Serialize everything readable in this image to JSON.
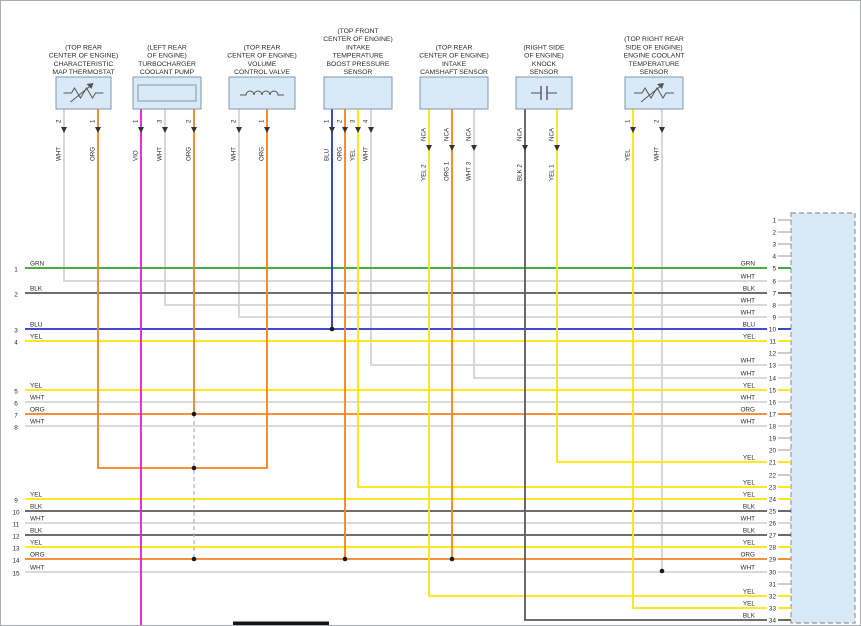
{
  "colors": {
    "GRN": "#2ea12e",
    "BLK": "#5a5a5a",
    "BLU": "#2233cc",
    "YEL": "#ffe600",
    "WHT": "#d4d4d4",
    "ORG": "#f5821f",
    "VIO": "#f013dc",
    "junction": "#1a1a1a",
    "dashed_link": "#b0b0b0",
    "component_fill": "#d9e9f7",
    "component_stroke": "#7f98ad",
    "connector_fill": "#d9e9f7",
    "connector_stroke": "#999999",
    "text": "#2b2b2b"
  },
  "nca_label": "NCA",
  "components": [
    {
      "id": "map-thermostat",
      "location_label": [
        "(TOP REAR",
        "CENTER OF ENGINE)",
        "CHARACTERISTIC",
        "MAP THERMOSTAT"
      ],
      "symbol": "thermistor",
      "pins": [
        {
          "num": "2",
          "color": "WHT"
        },
        {
          "num": "1",
          "color": "ORG"
        }
      ]
    },
    {
      "id": "turbo-coolant-pump",
      "location_label": [
        "(LEFT REAR",
        "OF ENGINE)",
        "TURBOCHARGER",
        "COOLANT PUMP"
      ],
      "symbol": "pump",
      "pins": [
        {
          "num": "1",
          "color": "VIO"
        },
        {
          "num": "3",
          "color": "WHT"
        },
        {
          "num": "2",
          "color": "ORG"
        }
      ]
    },
    {
      "id": "volume-control-valve",
      "location_label": [
        "(TOP REAR",
        "CENTER OF ENGINE)",
        "VOLUME",
        "CONTROL VALVE"
      ],
      "symbol": "coil",
      "pins": [
        {
          "num": "2",
          "color": "WHT"
        },
        {
          "num": "1",
          "color": "ORG"
        }
      ]
    },
    {
      "id": "boost-pressure-sensor",
      "location_label": [
        "(TOP FRONT",
        "CENTER OF ENGINE)",
        "INTAKE",
        "TEMPERATURE",
        "BOOST PRESSURE",
        "SENSOR"
      ],
      "symbol": "plain",
      "pins": [
        {
          "num": "1",
          "color": "BLU"
        },
        {
          "num": "2",
          "color": "ORG"
        },
        {
          "num": "3",
          "color": "YEL"
        },
        {
          "num": "4",
          "color": "WHT"
        }
      ]
    },
    {
      "id": "intake-camshaft-sensor",
      "location_label": [
        "(TOP REAR",
        "CENTER OF ENGINE)",
        "INTAKE",
        "CAMSHAFT SENSOR"
      ],
      "symbol": "plain",
      "pins": [
        {
          "num": "2",
          "color": "YEL",
          "nca": true
        },
        {
          "num": "1",
          "color": "ORG",
          "nca": true
        },
        {
          "num": "3",
          "color": "WHT",
          "nca": true
        }
      ]
    },
    {
      "id": "knock-sensor",
      "location_label": [
        "(RIGHT SIDE",
        "OF ENGINE)",
        "KNOCK",
        "SENSOR"
      ],
      "symbol": "knock",
      "pins": [
        {
          "num": "2",
          "color": "BLK",
          "nca": true
        },
        {
          "num": "1",
          "color": "YEL",
          "nca": true
        }
      ]
    },
    {
      "id": "ect-sensor",
      "location_label": [
        "(TOP RIGHT REAR",
        "SIDE OF ENGINE)",
        "ENGINE COOLANT",
        "TEMPERATURE",
        "SENSOR"
      ],
      "symbol": "thermistor",
      "pins": [
        {
          "num": "1",
          "color": "YEL"
        },
        {
          "num": "2",
          "color": "WHT"
        }
      ]
    }
  ],
  "left_rows": [
    {
      "n": "1",
      "color": "GRN",
      "pin": 5
    },
    {
      "n": "2",
      "color": "BLK",
      "pin": 7
    },
    {
      "n": "3",
      "color": "BLU",
      "pin": 10
    },
    {
      "n": "4",
      "color": "YEL",
      "pin": 11
    },
    {
      "n": "5",
      "color": "YEL",
      "pin": 15
    },
    {
      "n": "6",
      "color": "WHT",
      "pin": 16
    },
    {
      "n": "7",
      "color": "ORG",
      "pin": 17
    },
    {
      "n": "8",
      "color": "WHT",
      "pin": 18
    },
    {
      "n": "9",
      "color": "YEL",
      "pin": 24
    },
    {
      "n": "10",
      "color": "BLK",
      "pin": 25
    },
    {
      "n": "11",
      "color": "WHT",
      "pin": 26
    },
    {
      "n": "12",
      "color": "BLK",
      "pin": 27
    },
    {
      "n": "13",
      "color": "YEL",
      "pin": 28
    },
    {
      "n": "14",
      "color": "ORG",
      "pin": 29
    },
    {
      "n": "15",
      "color": "WHT",
      "pin": 30
    }
  ],
  "stubs": [
    {
      "component": "map-thermostat",
      "pin_num": "2",
      "color": "WHT",
      "connector_pin": 6
    },
    {
      "component": "turbo-coolant-pump",
      "pin_num": "3",
      "color": "WHT",
      "connector_pin": 8
    },
    {
      "component": "volume-control-valve",
      "pin_num": "2",
      "color": "WHT",
      "connector_pin": 9
    },
    {
      "component": "boost-pressure-sensor",
      "pin_num": "4",
      "color": "WHT",
      "connector_pin": 13
    },
    {
      "component": "intake-camshaft-sensor",
      "pin_num": "3",
      "color": "WHT",
      "connector_pin": 14
    },
    {
      "component": "boost-pressure-sensor",
      "pin_num": "3",
      "color": "YEL",
      "connector_pin": 23
    },
    {
      "component": "intake-camshaft-sensor",
      "pin_num": "2",
      "color": "YEL",
      "connector_pin": 32
    },
    {
      "component": "knock-sensor",
      "pin_num": "1",
      "color": "YEL",
      "connector_pin": 21
    },
    {
      "component": "ect-sensor",
      "pin_num": "1",
      "color": "YEL",
      "connector_pin": 33
    },
    {
      "component": "knock-sensor",
      "pin_num": "2",
      "color": "BLK",
      "connector_pin": 34
    }
  ],
  "connector_pins": [
    {
      "n": 1,
      "color": ""
    },
    {
      "n": 2,
      "color": ""
    },
    {
      "n": 3,
      "color": ""
    },
    {
      "n": 4,
      "color": ""
    },
    {
      "n": 5,
      "color": "GRN"
    },
    {
      "n": 6,
      "color": "WHT"
    },
    {
      "n": 7,
      "color": "BLK"
    },
    {
      "n": 8,
      "color": "WHT"
    },
    {
      "n": 9,
      "color": "WHT"
    },
    {
      "n": 10,
      "color": "BLU"
    },
    {
      "n": 11,
      "color": "YEL"
    },
    {
      "n": 12,
      "color": ""
    },
    {
      "n": 13,
      "color": "WHT"
    },
    {
      "n": 14,
      "color": "WHT"
    },
    {
      "n": 15,
      "color": "YEL"
    },
    {
      "n": 16,
      "color": "WHT"
    },
    {
      "n": 17,
      "color": "ORG"
    },
    {
      "n": 18,
      "color": "WHT"
    },
    {
      "n": 19,
      "color": ""
    },
    {
      "n": 20,
      "color": ""
    },
    {
      "n": 21,
      "color": "YEL"
    },
    {
      "n": 22,
      "color": ""
    },
    {
      "n": 23,
      "color": "YEL"
    },
    {
      "n": 24,
      "color": "YEL"
    },
    {
      "n": 25,
      "color": "BLK"
    },
    {
      "n": 26,
      "color": "WHT"
    },
    {
      "n": 27,
      "color": "BLK"
    },
    {
      "n": 28,
      "color": "YEL"
    },
    {
      "n": 29,
      "color": "ORG"
    },
    {
      "n": 30,
      "color": "WHT"
    },
    {
      "n": 31,
      "color": ""
    },
    {
      "n": 32,
      "color": "YEL"
    },
    {
      "n": 33,
      "color": "YEL"
    },
    {
      "n": 34,
      "color": "BLK"
    }
  ]
}
